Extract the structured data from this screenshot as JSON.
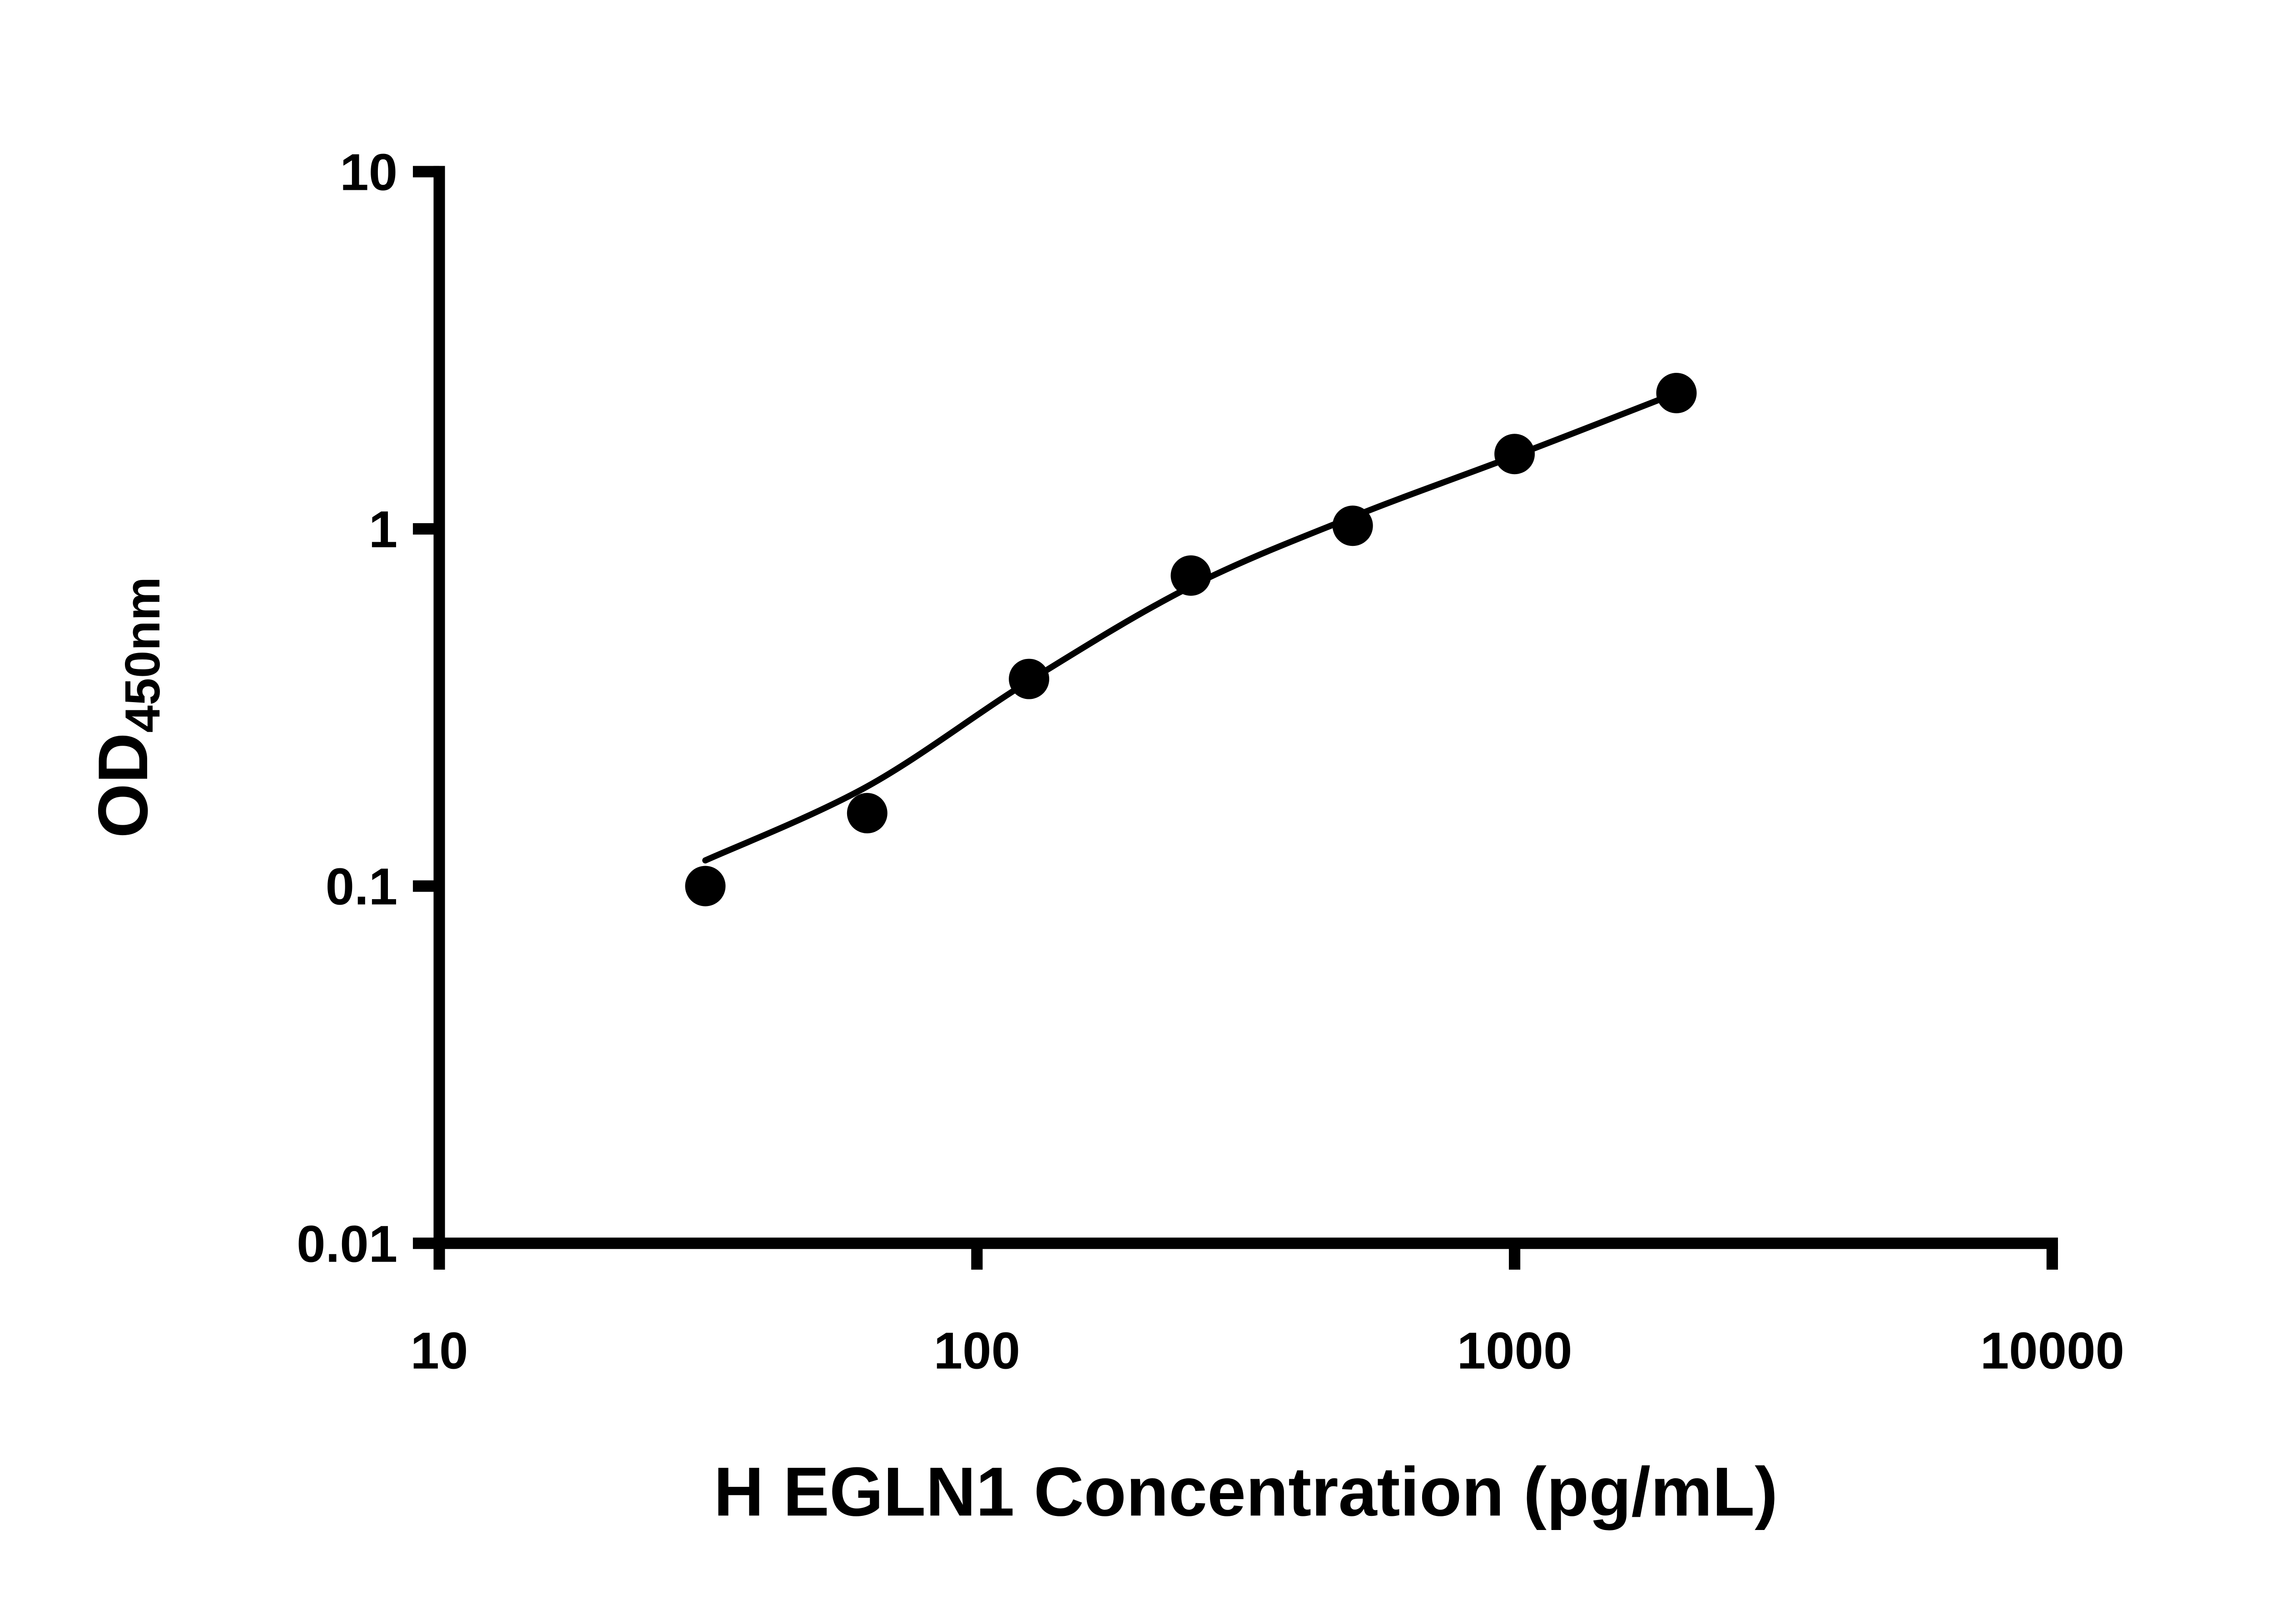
{
  "figure": {
    "background_color": "#ffffff",
    "ink_color": "#000000"
  },
  "chart_data": {
    "type": "scatter",
    "title": "",
    "xlabel": "H EGLN1 Concentration (pg/mL)",
    "ylabel_main": "OD",
    "ylabel_sub": "450nm",
    "x_scale": "log",
    "y_scale": "log",
    "xlim": [
      10,
      10000
    ],
    "ylim": [
      0.01,
      10
    ],
    "grid": false,
    "legend": "none",
    "x_ticks": [
      {
        "value": 10,
        "label": "10"
      },
      {
        "value": 100,
        "label": "100"
      },
      {
        "value": 1000,
        "label": "1000"
      },
      {
        "value": 10000,
        "label": "10000"
      }
    ],
    "y_ticks": [
      {
        "value": 0.01,
        "label": "0.01"
      },
      {
        "value": 0.1,
        "label": "0.1"
      },
      {
        "value": 1,
        "label": "1"
      },
      {
        "value": 10,
        "label": "10"
      }
    ],
    "series": [
      {
        "name": "standard-points",
        "marker": "circle",
        "color": "#000000",
        "points": [
          {
            "x": 31.25,
            "y": 0.1
          },
          {
            "x": 62.5,
            "y": 0.16
          },
          {
            "x": 125,
            "y": 0.38
          },
          {
            "x": 250,
            "y": 0.74
          },
          {
            "x": 500,
            "y": 1.02
          },
          {
            "x": 1000,
            "y": 1.62
          },
          {
            "x": 2000,
            "y": 2.4
          }
        ]
      }
    ],
    "fit_curve": [
      {
        "x": 31.25,
        "y": 0.118
      },
      {
        "x": 62.5,
        "y": 0.19
      },
      {
        "x": 125,
        "y": 0.375
      },
      {
        "x": 250,
        "y": 0.69
      },
      {
        "x": 500,
        "y": 1.08
      },
      {
        "x": 1000,
        "y": 1.6
      },
      {
        "x": 2000,
        "y": 2.4
      }
    ]
  }
}
